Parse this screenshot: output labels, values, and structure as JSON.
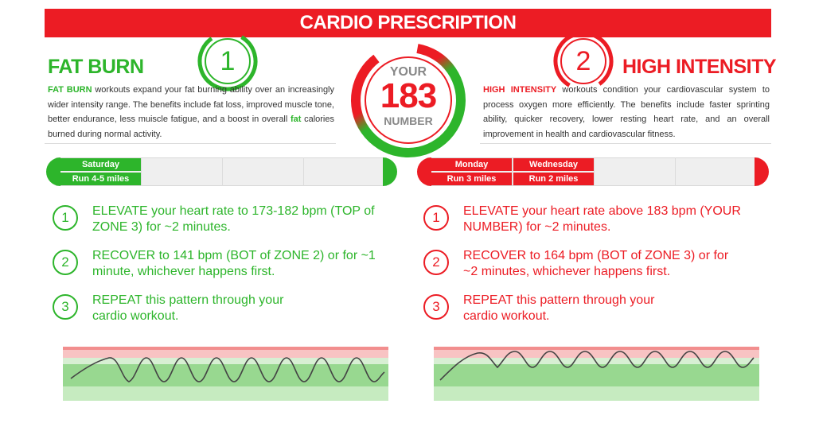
{
  "banner": {
    "title": "CARDIO PRESCRIPTION"
  },
  "colors": {
    "green": "#2db52b",
    "red": "#ec1c24",
    "grey": "#888888"
  },
  "left": {
    "badge": "1",
    "title": "FAT BURN",
    "desc_lead": "FAT BURN",
    "desc_part1": " workouts expand your fat burning ability over an increasingly wider intensity range. The benefits include fat loss, improved muscle tone, better endurance, less muiscle fatigue, and a boost in overall ",
    "desc_fat": "fat",
    "desc_part2": " calories burned during normal activity.",
    "schedule": [
      {
        "day": "Saturday",
        "activity": "Run 4-5 miles"
      }
    ],
    "steps": [
      {
        "n": "1",
        "text": "ELEVATE your heart rate to 173-182 bpm (TOP of ZONE 3) for ~2 minutes."
      },
      {
        "n": "2",
        "text": "RECOVER to 141 bpm (BOT of ZONE 2) or for ~1 minute, whichever happens first."
      },
      {
        "n": "3",
        "text": "REPEAT this pattern through your cardio workout."
      }
    ]
  },
  "right": {
    "badge": "2",
    "title": "HIGH INTENSITY",
    "desc_lead": "HIGH INTENSITY",
    "desc_part1": " workouts condition your cardiovascular system to process oxygen more efficiently. The benefits include faster sprinting ability, quicker recovery, lower resting heart rate, and an overall improvement in health and cardiovascular fitness.",
    "schedule": [
      {
        "day": "Monday",
        "activity": "Run 3 miles"
      },
      {
        "day": "Wednesday",
        "activity": "Run 2 miles"
      }
    ],
    "steps": [
      {
        "n": "1",
        "text": "ELEVATE your heart rate above 183 bpm (YOUR NUMBER) for ~2 minutes."
      },
      {
        "n": "2",
        "text": "RECOVER to 164 bpm (BOT of ZONE 3) or for ~2 minutes, whichever happens first."
      },
      {
        "n": "3",
        "text": "REPEAT this pattern through your cardio workout."
      }
    ]
  },
  "gauge": {
    "top": "YOUR",
    "value": "183",
    "bottom": "NUMBER"
  }
}
